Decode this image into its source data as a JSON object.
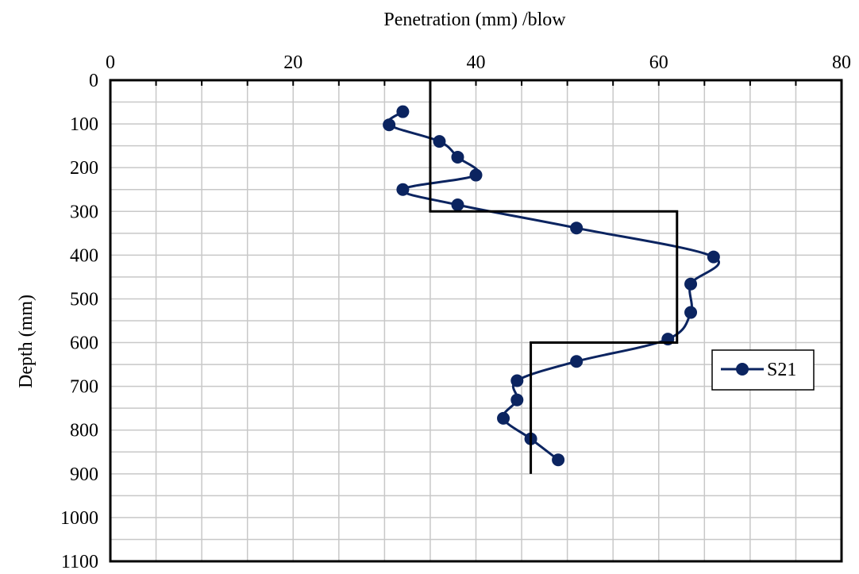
{
  "chart_data": {
    "type": "line",
    "orientation": "depth-profile",
    "title": "",
    "xlabel": "Penetration (mm) /blow",
    "ylabel": "Depth (mm)",
    "xlim": [
      0,
      80
    ],
    "ylim": [
      0,
      1100
    ],
    "x_axis_position": "top",
    "y_axis_inverted": true,
    "x_ticks": [
      0,
      20,
      40,
      60,
      80
    ],
    "y_ticks": [
      0,
      100,
      200,
      300,
      400,
      500,
      600,
      700,
      800,
      900,
      1000,
      1100
    ],
    "grid": true,
    "legend": {
      "position": "right",
      "entries": [
        "S21"
      ]
    },
    "series": [
      {
        "name": "S21",
        "color": "#0b2460",
        "marker": "circle",
        "smooth": true,
        "points": [
          {
            "x": 32,
            "y": 72
          },
          {
            "x": 30.5,
            "y": 102
          },
          {
            "x": 36,
            "y": 140
          },
          {
            "x": 38,
            "y": 176
          },
          {
            "x": 40,
            "y": 217
          },
          {
            "x": 32,
            "y": 250
          },
          {
            "x": 38,
            "y": 285
          },
          {
            "x": 51,
            "y": 338
          },
          {
            "x": 66,
            "y": 404
          },
          {
            "x": 63.5,
            "y": 466
          },
          {
            "x": 63.5,
            "y": 531
          },
          {
            "x": 61,
            "y": 592
          },
          {
            "x": 51,
            "y": 643
          },
          {
            "x": 44.5,
            "y": 687
          },
          {
            "x": 44.5,
            "y": 731
          },
          {
            "x": 43,
            "y": 773
          },
          {
            "x": 46,
            "y": 820
          },
          {
            "x": 49,
            "y": 868
          }
        ]
      },
      {
        "name": "",
        "color": "#000000",
        "marker": "none",
        "step_profile": true,
        "points": [
          {
            "x": 35,
            "y": 0
          },
          {
            "x": 35,
            "y": 300
          },
          {
            "x": 62,
            "y": 300
          },
          {
            "x": 62,
            "y": 600
          },
          {
            "x": 46,
            "y": 600
          },
          {
            "x": 46,
            "y": 900
          }
        ]
      }
    ]
  }
}
